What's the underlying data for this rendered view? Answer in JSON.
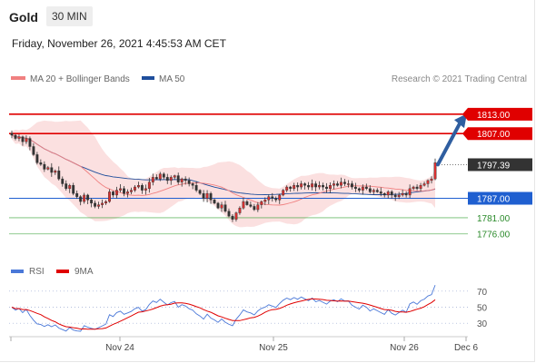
{
  "header": {
    "instrument": "Gold",
    "timeframe": "30 MIN",
    "timestamp": "Friday, November 26, 2021 4:45:53 AM CET"
  },
  "legend": {
    "ma20": {
      "label": "MA 20 + Bollinger Bands",
      "color": "#f08080"
    },
    "ma50": {
      "label": "MA 50",
      "color": "#1f4e9c"
    },
    "copyright": "Research © 2021 Trading Central"
  },
  "rsi_legend": {
    "rsi": {
      "label": "RSI",
      "color": "#4a78d8"
    },
    "ma": {
      "label": "9MA",
      "color": "#e00000"
    }
  },
  "levels": [
    {
      "value": 1813.0,
      "label": "1813.00",
      "kind": "resistance",
      "color": "#e00000"
    },
    {
      "value": 1807.0,
      "label": "1807.00",
      "kind": "resistance",
      "color": "#e00000"
    },
    {
      "value": 1797.39,
      "label": "1797.39",
      "kind": "last",
      "color": "#333333"
    },
    {
      "value": 1787.0,
      "label": "1787.00",
      "kind": "pivot",
      "color": "#1f5fd0"
    },
    {
      "value": 1781.0,
      "label": "1781.00",
      "kind": "support",
      "color": "#2e9e2e"
    },
    {
      "value": 1776.0,
      "label": "1776.00",
      "kind": "support",
      "color": "#2e9e2e"
    }
  ],
  "chart_data": [
    {
      "type": "candlestick",
      "x_ticks": [
        "Nov 24",
        "Nov 25",
        "Nov 26",
        "Dec 6"
      ],
      "ylim": [
        1772,
        1818
      ],
      "closes": [
        1806.5,
        1805.5,
        1806,
        1804.5,
        1805.5,
        1803,
        1800.5,
        1798,
        1797.5,
        1796,
        1796.5,
        1795,
        1795.5,
        1793,
        1791.5,
        1790,
        1791,
        1788.5,
        1787.5,
        1786,
        1788,
        1786.5,
        1785.5,
        1784.5,
        1785,
        1785.5,
        1786,
        1789,
        1788,
        1789.5,
        1790,
        1788.5,
        1789,
        1789.5,
        1790.5,
        1791,
        1789.5,
        1790,
        1792,
        1793.5,
        1793,
        1794.5,
        1793.5,
        1792.5,
        1793.5,
        1794,
        1792,
        1793,
        1792.5,
        1791.5,
        1791,
        1789.5,
        1788.5,
        1787,
        1788.5,
        1786.5,
        1785.5,
        1784,
        1785,
        1783,
        1781.5,
        1780.5,
        1782.5,
        1784,
        1786,
        1785,
        1784.5,
        1783.5,
        1785,
        1786,
        1786.5,
        1787.5,
        1787,
        1786.5,
        1788,
        1789.5,
        1790.5,
        1790,
        1791,
        1790.5,
        1791.5,
        1791,
        1790.5,
        1791.5,
        1790.5,
        1791,
        1790.5,
        1790,
        1791,
        1791.5,
        1791,
        1792,
        1791.5,
        1791.5,
        1790.5,
        1790,
        1789.5,
        1790.5,
        1790,
        1789,
        1789.5,
        1789,
        1788.5,
        1788,
        1789,
        1788,
        1787.5,
        1788,
        1788.5,
        1788,
        1790,
        1790.5,
        1790,
        1791,
        1791.5,
        1792.5,
        1793,
        1798
      ],
      "rsi": {
        "ylim": [
          20,
          80
        ],
        "levels": [
          70,
          50,
          30
        ]
      },
      "ma20_color": "#f08080",
      "ma50_color": "#1f4e9c"
    }
  ]
}
